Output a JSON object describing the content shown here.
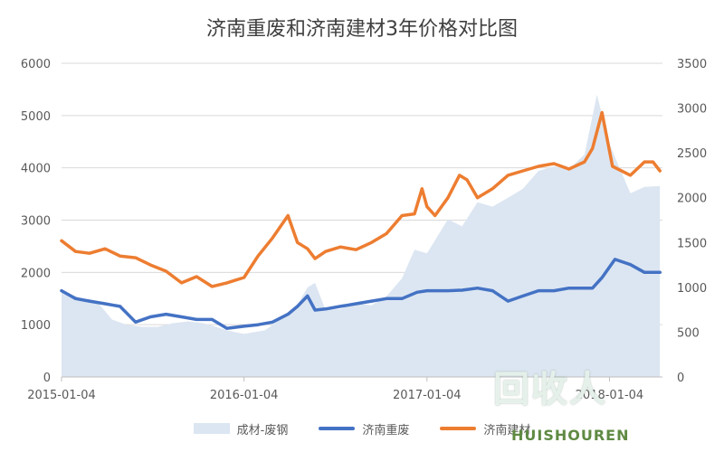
{
  "chart_data": {
    "type": "line",
    "title": "济南重废和济南建材3年价格对比图",
    "x_tick_labels": [
      "2015-01-04",
      "2016-01-04",
      "2017-01-04",
      "2018-01-04"
    ],
    "left_axis": {
      "ylim": [
        0,
        6000
      ],
      "ticks": [
        0,
        1000,
        2000,
        3000,
        4000,
        5000,
        6000
      ]
    },
    "right_axis": {
      "ylim": [
        0,
        3500
      ],
      "ticks": [
        0,
        500,
        1000,
        1500,
        2000,
        2500,
        3000,
        3500
      ]
    },
    "grid": true,
    "legend_position": "bottom",
    "series": [
      {
        "name": "成材-废钢",
        "type": "area",
        "axis": "right",
        "color": "#dce6f2",
        "x": [
          "2015-01-04",
          "2015-02-15",
          "2015-03-15",
          "2015-04-15",
          "2015-05-15",
          "2015-06-15",
          "2015-07-15",
          "2015-08-15",
          "2015-09-15",
          "2015-10-15",
          "2015-11-15",
          "2015-12-01",
          "2016-01-04",
          "2016-02-15",
          "2016-03-15",
          "2016-04-15",
          "2016-05-10",
          "2016-05-25",
          "2016-06-15",
          "2016-07-15",
          "2016-08-15",
          "2016-09-15",
          "2016-10-15",
          "2016-11-15",
          "2016-12-10",
          "2017-01-04",
          "2017-02-15",
          "2017-03-15",
          "2017-04-15",
          "2017-05-15",
          "2017-06-15",
          "2017-07-15",
          "2017-08-15",
          "2017-09-15",
          "2017-10-15",
          "2017-11-15",
          "2017-12-10",
          "2018-01-04",
          "2018-02-15",
          "2018-03-15",
          "2018-04-15"
        ],
        "values": [
          950,
          880,
          850,
          640,
          580,
          560,
          560,
          600,
          620,
          600,
          550,
          520,
          480,
          520,
          640,
          760,
          1000,
          1050,
          750,
          760,
          820,
          800,
          900,
          1100,
          1420,
          1380,
          1760,
          1680,
          1950,
          1900,
          2000,
          2100,
          2300,
          2350,
          2320,
          2480,
          3150,
          2600,
          2050,
          2120,
          2130
        ]
      },
      {
        "name": "济南重废",
        "type": "line",
        "axis": "left",
        "color": "#4472c4",
        "x": [
          "2015-01-04",
          "2015-02-01",
          "2015-03-01",
          "2015-04-01",
          "2015-05-01",
          "2015-06-01",
          "2015-07-01",
          "2015-08-01",
          "2015-09-01",
          "2015-10-01",
          "2015-11-01",
          "2015-12-01",
          "2016-01-04",
          "2016-02-01",
          "2016-03-01",
          "2016-04-01",
          "2016-04-20",
          "2016-05-10",
          "2016-05-25",
          "2016-06-15",
          "2016-07-15",
          "2016-08-15",
          "2016-09-15",
          "2016-10-15",
          "2016-11-15",
          "2016-12-15",
          "2017-01-04",
          "2017-02-15",
          "2017-03-15",
          "2017-04-15",
          "2017-05-15",
          "2017-06-15",
          "2017-07-15",
          "2017-08-15",
          "2017-09-15",
          "2017-10-15",
          "2017-11-15",
          "2017-12-01",
          "2017-12-20",
          "2018-01-15",
          "2018-02-15",
          "2018-03-15",
          "2018-04-15"
        ],
        "values": [
          1650,
          1500,
          1450,
          1400,
          1350,
          1050,
          1150,
          1200,
          1150,
          1100,
          1100,
          930,
          970,
          1000,
          1050,
          1200,
          1350,
          1550,
          1280,
          1300,
          1350,
          1400,
          1450,
          1500,
          1500,
          1620,
          1650,
          1650,
          1660,
          1700,
          1650,
          1450,
          1550,
          1650,
          1650,
          1700,
          1700,
          1700,
          1900,
          2250,
          2150,
          2000,
          2000
        ]
      },
      {
        "name": "济南建材",
        "type": "line",
        "axis": "right",
        "color": "#ed7d31",
        "x": [
          "2015-01-04",
          "2015-02-01",
          "2015-03-01",
          "2015-04-01",
          "2015-05-01",
          "2015-06-01",
          "2015-07-01",
          "2015-08-01",
          "2015-09-01",
          "2015-10-01",
          "2015-11-01",
          "2015-12-01",
          "2016-01-04",
          "2016-02-01",
          "2016-03-01",
          "2016-04-01",
          "2016-04-20",
          "2016-05-10",
          "2016-05-25",
          "2016-06-15",
          "2016-07-15",
          "2016-08-15",
          "2016-09-15",
          "2016-10-15",
          "2016-11-15",
          "2016-12-10",
          "2016-12-25",
          "2017-01-04",
          "2017-01-20",
          "2017-02-15",
          "2017-03-10",
          "2017-03-25",
          "2017-04-15",
          "2017-05-15",
          "2017-06-15",
          "2017-07-15",
          "2017-08-15",
          "2017-09-15",
          "2017-10-15",
          "2017-11-15",
          "2017-12-01",
          "2017-12-20",
          "2018-01-10",
          "2018-02-15",
          "2018-03-15",
          "2018-04-01",
          "2018-04-15"
        ],
        "values": [
          1520,
          1400,
          1380,
          1430,
          1350,
          1330,
          1250,
          1180,
          1050,
          1120,
          1010,
          1050,
          1110,
          1350,
          1550,
          1800,
          1500,
          1430,
          1320,
          1400,
          1450,
          1420,
          1500,
          1600,
          1800,
          1820,
          2100,
          1900,
          1800,
          2000,
          2250,
          2200,
          2000,
          2100,
          2250,
          2300,
          2350,
          2380,
          2320,
          2400,
          2550,
          2950,
          2350,
          2250,
          2400,
          2400,
          2300
        ]
      }
    ]
  },
  "watermark": {
    "text": "HUISHOUREN",
    "logo_text": "回收人"
  }
}
